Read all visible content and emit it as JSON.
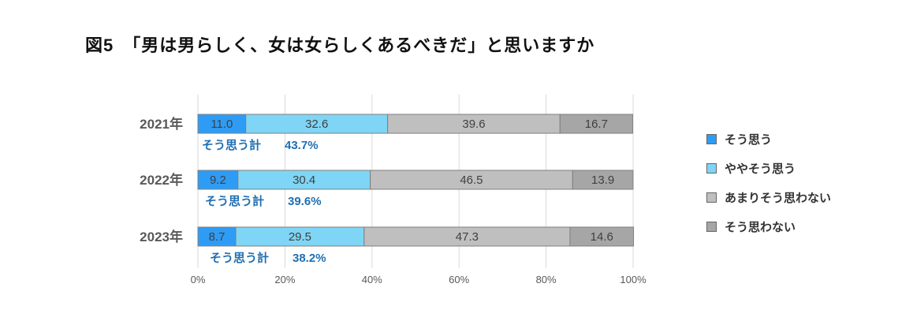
{
  "chart_data": {
    "type": "bar",
    "orientation": "horizontal-stacked-100",
    "title": "図5　「男は男らしく、女は女らしくあるべきだ」と思いますか",
    "categories": [
      "2021年",
      "2022年",
      "2023年"
    ],
    "series": [
      {
        "name": "そう思う",
        "color": "#2e9cf5",
        "values": [
          11.0,
          9.2,
          8.7
        ]
      },
      {
        "name": "ややそう思う",
        "color": "#7fd5f5",
        "values": [
          32.6,
          30.4,
          29.5
        ]
      },
      {
        "name": "あまりそう思わない",
        "color": "#bfbfbf",
        "values": [
          39.6,
          46.5,
          47.3
        ]
      },
      {
        "name": "そう思わない",
        "color": "#a6a6a6",
        "values": [
          16.7,
          13.9,
          14.6
        ]
      }
    ],
    "annotations": [
      {
        "label": "そう思う計",
        "value": "43.7%"
      },
      {
        "label": "そう思う計",
        "value": "39.6%"
      },
      {
        "label": "そう思う計",
        "value": "38.2%"
      }
    ],
    "xticks": [
      "0%",
      "20%",
      "40%",
      "60%",
      "80%",
      "100%"
    ],
    "xlim": [
      0,
      100
    ],
    "grid": true,
    "legend_position": "right"
  }
}
